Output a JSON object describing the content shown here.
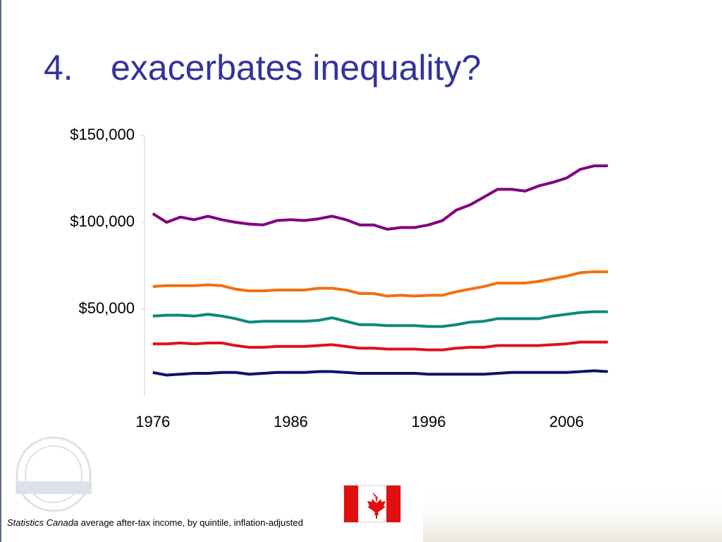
{
  "slide": {
    "number": "4.",
    "title": "exacerbates inequality?",
    "caption_source": "Statistics Canada",
    "caption_text": "average after-tax income, by quintile, inflation-adjusted"
  },
  "chart_data": {
    "type": "line",
    "x": [
      1976,
      1977,
      1978,
      1979,
      1980,
      1981,
      1982,
      1983,
      1984,
      1985,
      1986,
      1987,
      1988,
      1989,
      1990,
      1991,
      1992,
      1993,
      1994,
      1995,
      1996,
      1997,
      1998,
      1999,
      2000,
      2001,
      2002,
      2003,
      2004,
      2005,
      2006,
      2007,
      2008,
      2009
    ],
    "series": [
      {
        "color": "#800080",
        "values": [
          105000,
          100000,
          103000,
          101500,
          103500,
          101500,
          100000,
          99000,
          98500,
          101000,
          101500,
          101000,
          102000,
          103500,
          101500,
          98500,
          98500,
          96000,
          97000,
          97000,
          98500,
          101000,
          107000,
          110000,
          114500,
          119000,
          119000,
          118000,
          121000,
          123000,
          125500,
          130500,
          132500,
          132500
        ]
      },
      {
        "color": "#f07010",
        "values": [
          63000,
          63500,
          63500,
          63500,
          64000,
          63500,
          61500,
          60500,
          60500,
          61000,
          61000,
          61000,
          62000,
          62000,
          61000,
          59000,
          59000,
          57500,
          58000,
          57500,
          58000,
          58000,
          60000,
          61500,
          63000,
          65000,
          65000,
          65000,
          66000,
          67500,
          69000,
          71000,
          71500,
          71500
        ]
      },
      {
        "color": "#108878",
        "values": [
          46000,
          46500,
          46500,
          46000,
          47000,
          46000,
          44500,
          42500,
          43000,
          43000,
          43000,
          43000,
          43500,
          45000,
          43000,
          41000,
          41000,
          40500,
          40500,
          40500,
          40000,
          40000,
          41000,
          42500,
          43000,
          44500,
          44500,
          44500,
          44500,
          46000,
          47000,
          48000,
          48500,
          48500
        ]
      },
      {
        "color": "#e01020",
        "values": [
          30000,
          30000,
          30500,
          30000,
          30500,
          30500,
          29000,
          28000,
          28000,
          28500,
          28500,
          28500,
          29000,
          29500,
          28500,
          27500,
          27500,
          27000,
          27000,
          27000,
          26500,
          26500,
          27500,
          28000,
          28000,
          29000,
          29000,
          29000,
          29000,
          29500,
          30000,
          31000,
          31000,
          31000
        ]
      },
      {
        "color": "#101070",
        "values": [
          13500,
          12000,
          12500,
          13000,
          13000,
          13500,
          13500,
          12500,
          13000,
          13500,
          13500,
          13500,
          14000,
          14000,
          13500,
          13000,
          13000,
          13000,
          13000,
          13000,
          12500,
          12500,
          12500,
          12500,
          12500,
          13000,
          13500,
          13500,
          13500,
          13500,
          13500,
          14000,
          14500,
          14000
        ]
      }
    ],
    "xlim": [
      1975.4,
      2009.4
    ],
    "xticks": [
      1976,
      1986,
      1996,
      2006
    ],
    "ylim": [
      0,
      150000
    ],
    "yticks": [
      {
        "value": 50000,
        "label": "$50,000"
      },
      {
        "value": 100000,
        "label": "$100,000"
      },
      {
        "value": 150000,
        "label": "$150,000"
      }
    ]
  }
}
